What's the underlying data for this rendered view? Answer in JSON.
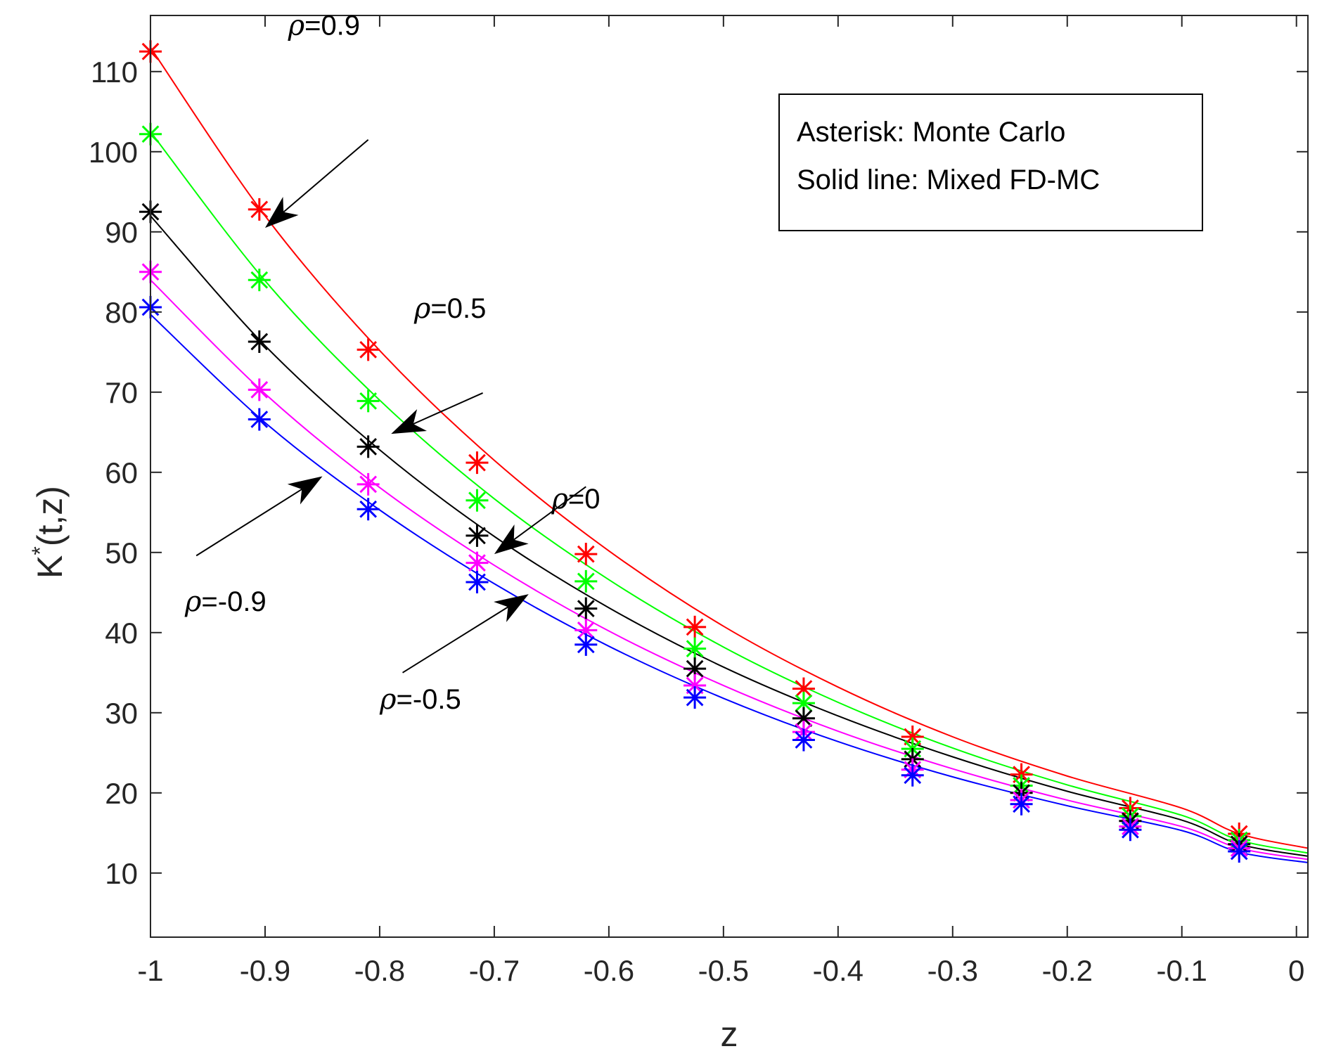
{
  "chart_data": {
    "type": "line",
    "xlabel": "z",
    "ylabel_base": "K",
    "ylabel_sup": "*",
    "ylabel_rest": "(t,z)",
    "xlim": [
      -1,
      0.01
    ],
    "ylim": [
      2,
      117
    ],
    "xticks": [
      -1,
      -0.9,
      -0.8,
      -0.7,
      -0.6,
      -0.5,
      -0.4,
      -0.3,
      -0.2,
      -0.1,
      0
    ],
    "xtick_labels": [
      "-1",
      "-0.9",
      "-0.8",
      "-0.7",
      "-0.6",
      "-0.5",
      "-0.4",
      "-0.3",
      "-0.2",
      "-0.1",
      "0"
    ],
    "yticks": [
      10,
      20,
      30,
      40,
      50,
      60,
      70,
      80,
      90,
      100,
      110
    ],
    "ytick_labels": [
      "10",
      "20",
      "30",
      "40",
      "50",
      "60",
      "70",
      "80",
      "90",
      "100",
      "110"
    ],
    "grid": false,
    "marker_x": [
      -1,
      -0.905,
      -0.81,
      -0.715,
      -0.62,
      -0.525,
      -0.43,
      -0.335,
      -0.24,
      -0.145,
      -0.05
    ],
    "series": [
      {
        "color": "#ff0000",
        "markers": [
          112.5,
          92.8,
          75.3,
          61.2,
          49.8,
          40.7,
          33.0,
          27.0,
          22.3,
          18.1,
          14.9
        ],
        "line": [
          113.0,
          92.0,
          75.2,
          61.5,
          50.2,
          40.8,
          33.2,
          27.0,
          22.1,
          18.1,
          14.9,
          13.1
        ]
      },
      {
        "color": "#00ff00",
        "markers": [
          102.2,
          84.0,
          68.9,
          56.5,
          46.4,
          38.0,
          31.2,
          25.5,
          20.9,
          17.1,
          14.1
        ],
        "line": [
          102.5,
          83.9,
          69.0,
          56.7,
          46.6,
          38.2,
          31.3,
          25.6,
          21.0,
          17.2,
          14.1,
          12.5
        ]
      },
      {
        "color": "#000000",
        "markers": [
          92.5,
          76.3,
          63.2,
          52.1,
          43.0,
          35.5,
          29.3,
          24.2,
          20.0,
          16.5,
          13.6
        ],
        "line": [
          92.0,
          75.8,
          62.8,
          52.0,
          43.1,
          35.7,
          29.6,
          24.5,
          20.2,
          16.6,
          13.6,
          12.1
        ]
      },
      {
        "color": "#ff00ff",
        "markers": [
          85.0,
          70.3,
          58.5,
          48.7,
          40.3,
          33.4,
          27.6,
          22.9,
          19.1,
          15.8,
          13.1
        ],
        "line": [
          84.0,
          69.8,
          58.1,
          48.4,
          40.2,
          33.4,
          27.7,
          23.0,
          19.1,
          15.8,
          13.1,
          11.7
        ]
      },
      {
        "color": "#0000ff",
        "markers": [
          80.6,
          66.6,
          55.4,
          46.3,
          38.5,
          31.9,
          26.6,
          22.2,
          18.6,
          15.4,
          12.7
        ],
        "line": [
          79.7,
          66.2,
          55.3,
          46.1,
          38.3,
          31.8,
          26.4,
          22.0,
          18.4,
          15.3,
          12.6,
          11.3
        ]
      }
    ],
    "line_x": [
      -1,
      -0.9,
      -0.8,
      -0.7,
      -0.6,
      -0.5,
      -0.4,
      -0.3,
      -0.2,
      -0.1,
      -0.05,
      0.01
    ],
    "legend": [
      "Asterisk: Monte Carlo",
      "Solid line: Mixed FD-MC"
    ],
    "annotations": [
      {
        "rho": "ρ",
        "text": "=0.9",
        "label_at": [
          -0.88,
          114.6
        ],
        "arrow_from": [
          -0.81,
          101.5
        ],
        "arrow_to": [
          -0.9,
          90.5
        ]
      },
      {
        "rho": "ρ",
        "text": "=0.5",
        "label_at": [
          -0.77,
          79.3
        ],
        "arrow_from": [
          -0.71,
          69.9
        ],
        "arrow_to": [
          -0.79,
          64.8
        ]
      },
      {
        "rho": "ρ",
        "text": "=0",
        "label_at": [
          -0.65,
          55.5
        ],
        "arrow_from": [
          -0.62,
          58.2
        ],
        "arrow_to": [
          -0.7,
          49.8
        ]
      },
      {
        "rho": "ρ",
        "text": "=-0.9",
        "label_at": [
          -0.97,
          42.7
        ],
        "arrow_from": [
          -0.96,
          49.6
        ],
        "arrow_to": [
          -0.85,
          59.5
        ]
      },
      {
        "rho": "ρ",
        "text": "=-0.5",
        "label_at": [
          -0.8,
          30.5
        ],
        "arrow_from": [
          -0.78,
          35.0
        ],
        "arrow_to": [
          -0.67,
          44.8
        ]
      }
    ]
  }
}
